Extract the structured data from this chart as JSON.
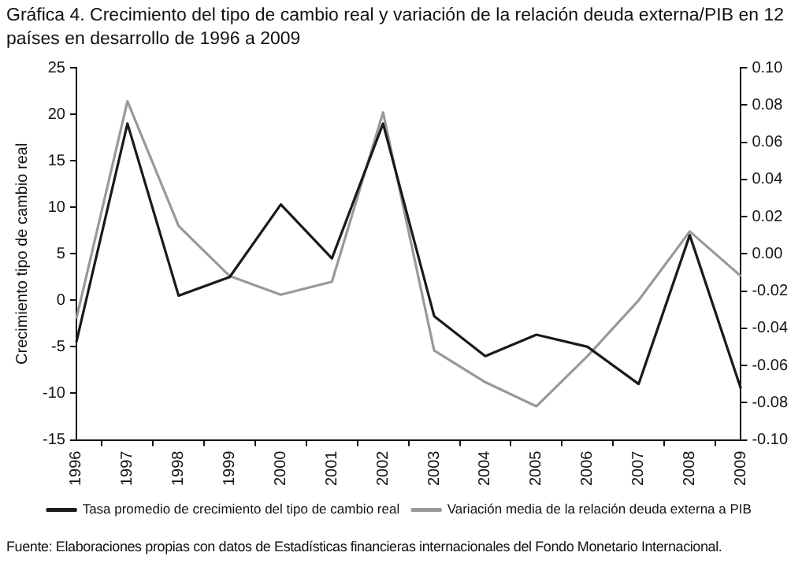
{
  "chart_data": {
    "type": "line",
    "title": "Gráfica 4. Crecimiento del tipo de cambio real y variación de la relación deuda externa/PIB en 12 países en desarrollo de 1996 a 2009",
    "ylabel": "Crecimiento tipo de cambio real",
    "categories": [
      "1996",
      "1997",
      "1998",
      "1999",
      "2000",
      "2001",
      "2002",
      "2003",
      "2004",
      "2005",
      "2006",
      "2007",
      "2008",
      "2009"
    ],
    "series": [
      {
        "name": "Tasa promedio de crecimiento del tipo de cambio real",
        "color": "#1a1a1a",
        "values": [
          -4.5,
          19,
          0.5,
          2.5,
          10.3,
          4.5,
          19,
          -1.7,
          -6,
          -3.7,
          -5,
          -9,
          7,
          -9.5
        ]
      },
      {
        "name": "Variación media de la relación deuda externa a PIB",
        "color": "#999999",
        "axis": "y2",
        "values": [
          -0.035,
          0.082,
          0.015,
          -0.012,
          -0.022,
          -0.015,
          0.076,
          -0.052,
          -0.069,
          -0.082,
          -0.055,
          -0.025,
          0.012,
          -0.012
        ]
      }
    ],
    "ylim": [
      -15,
      25
    ],
    "yticks": [
      -15,
      -10,
      -5,
      0,
      5,
      10,
      15,
      20,
      25
    ],
    "y2lim": [
      -0.1,
      0.1
    ],
    "y2ticks": [
      {
        "value": -0.1,
        "label": "-0.10"
      },
      {
        "value": -0.08,
        "label": "-0.08"
      },
      {
        "value": -0.06,
        "label": "-0.06"
      },
      {
        "value": -0.04,
        "label": "-0.04"
      },
      {
        "value": -0.02,
        "label": "-0.02"
      },
      {
        "value": 0,
        "label": "0.00"
      },
      {
        "value": 0.02,
        "label": "0.02"
      },
      {
        "value": 0.04,
        "label": "0.04"
      },
      {
        "value": 0.06,
        "label": "0.06"
      },
      {
        "value": 0.08,
        "label": "0.08"
      },
      {
        "value": 0.1,
        "label": "0.10"
      }
    ],
    "grid": false,
    "legend": "bottom",
    "marker": "none",
    "line_style": "solid",
    "annotations": [
      "Fuente: Elaboraciones propias con datos de Estadísticas financieras internacionales del Fondo Monetario Internacional."
    ]
  }
}
